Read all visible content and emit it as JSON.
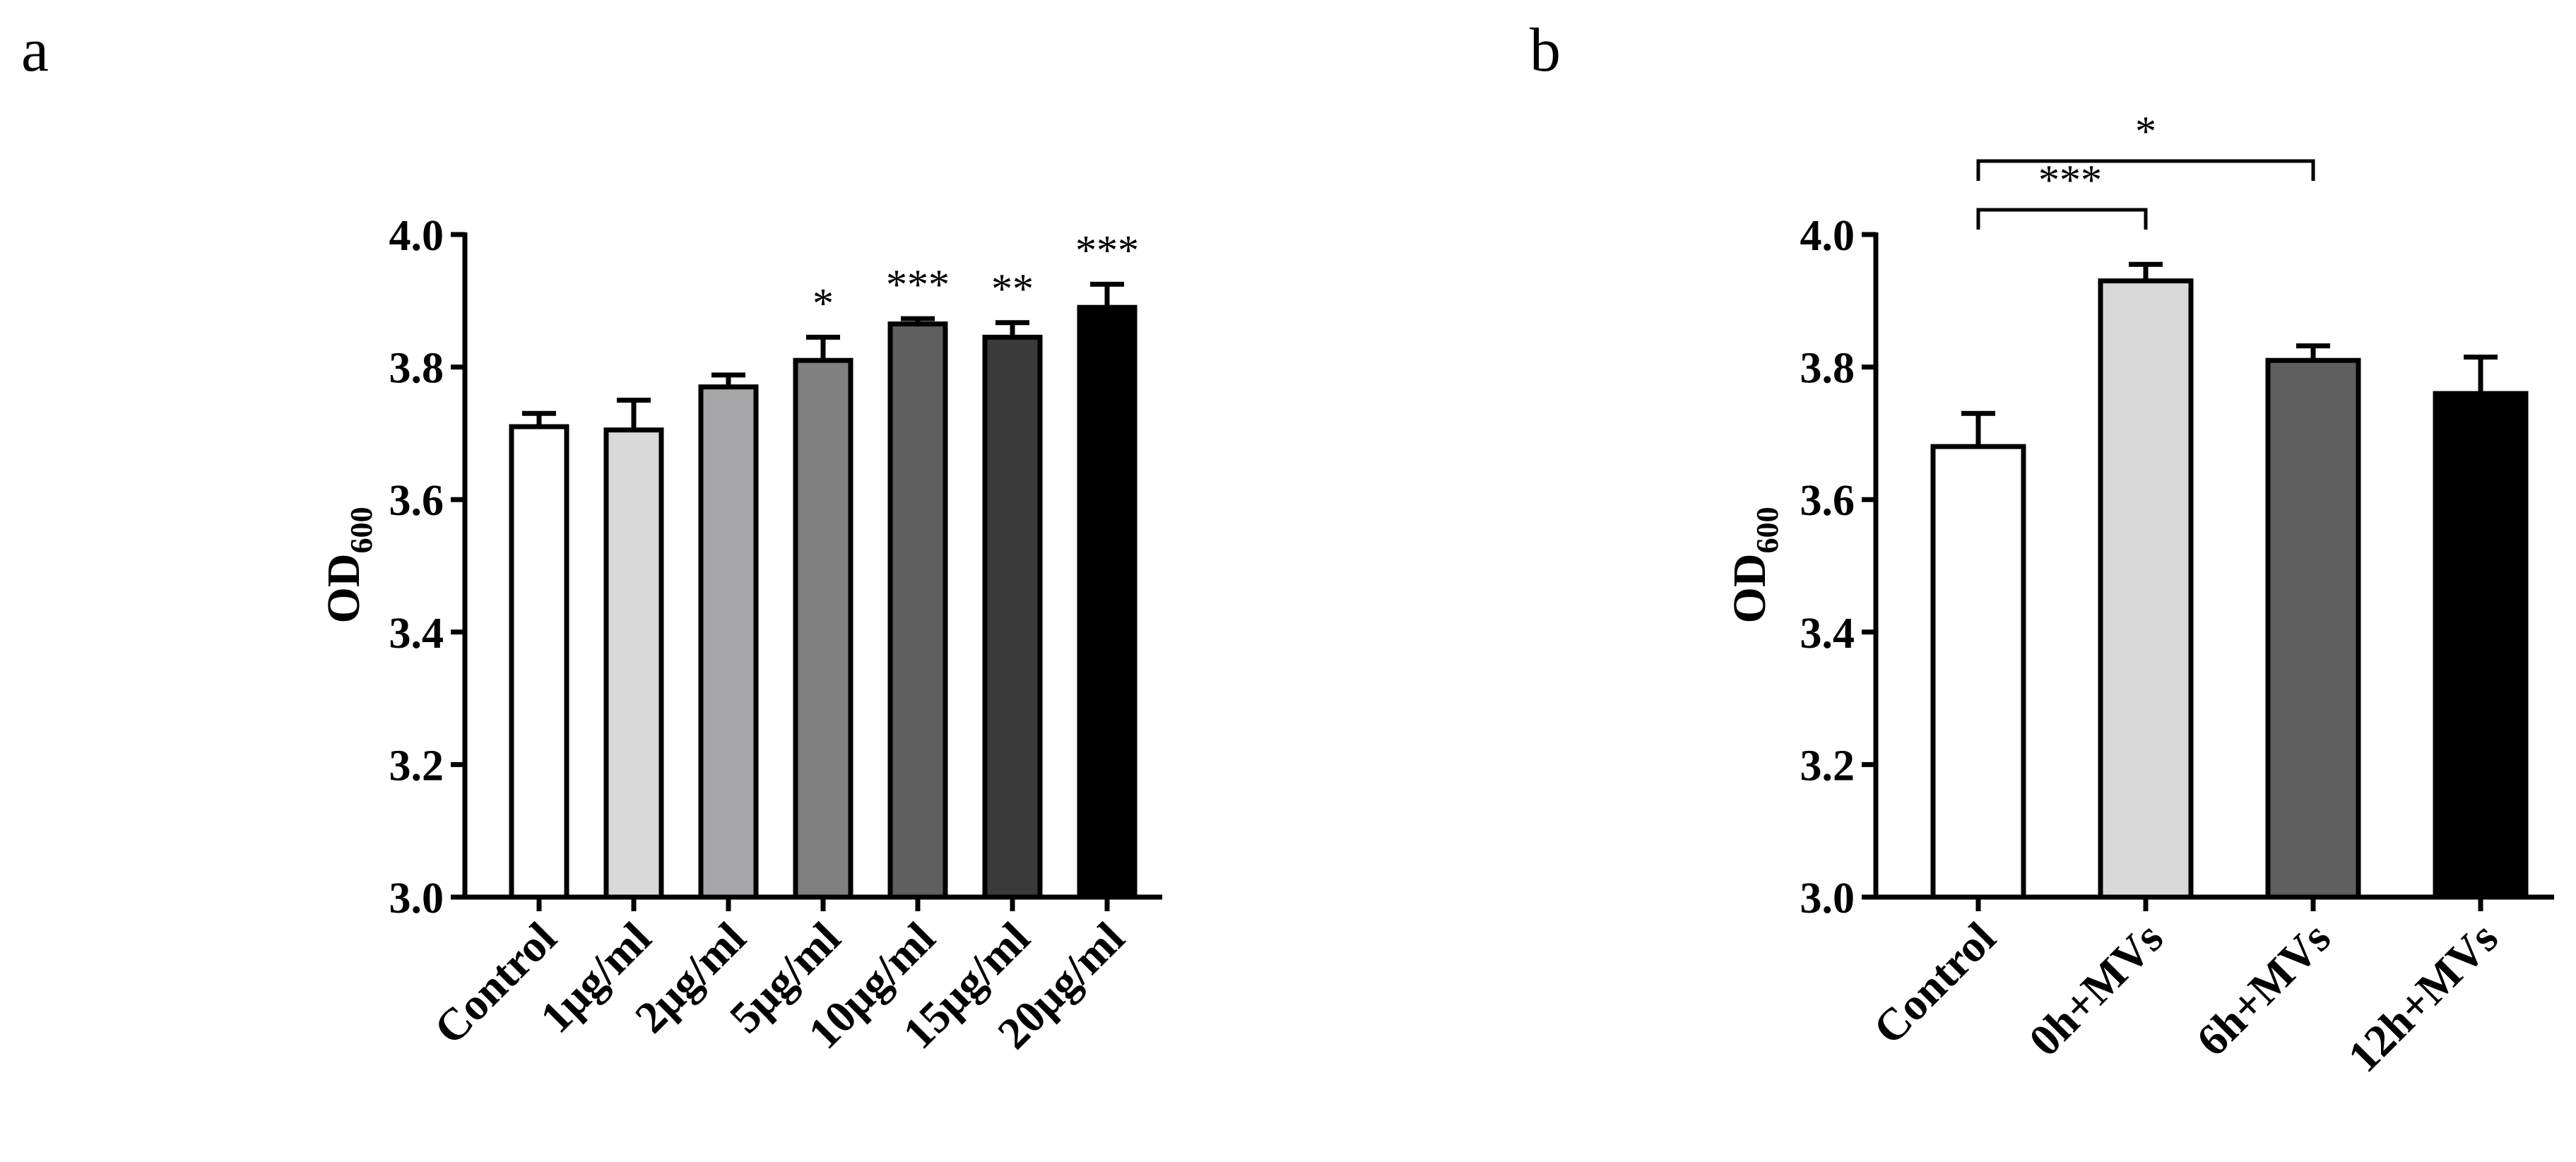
{
  "chart_data": [
    {
      "type": "bar",
      "panel_label": "a",
      "ylabel_main": "OD",
      "ylabel_sub": "600",
      "ylim": [
        3.0,
        4.0
      ],
      "yticks": [
        "3.0",
        "3.2",
        "3.4",
        "3.6",
        "3.8",
        "4.0"
      ],
      "categories": [
        "Control",
        "1μg/ml",
        "2μg/ml",
        "5μg/ml",
        "10μg/ml",
        "15μg/ml",
        "20μg/ml"
      ],
      "values": [
        3.71,
        3.705,
        3.77,
        3.81,
        3.865,
        3.845,
        3.89
      ],
      "error": [
        0.02,
        0.045,
        0.018,
        0.035,
        0.008,
        0.022,
        0.035
      ],
      "colors": [
        "#ffffff",
        "#d9d9d9",
        "#a6a6a8",
        "#808080",
        "#5f5f5f",
        "#3a3a3a",
        "#000000"
      ],
      "significance": [
        "",
        "",
        "",
        "*",
        "***",
        "**",
        "***"
      ],
      "brackets": []
    },
    {
      "type": "bar",
      "panel_label": "b",
      "ylabel_main": "OD",
      "ylabel_sub": "600",
      "ylim": [
        3.0,
        4.0
      ],
      "yticks": [
        "3.0",
        "3.2",
        "3.4",
        "3.6",
        "3.8",
        "4.0"
      ],
      "categories": [
        "Control",
        "0h+MVs",
        "6h+MVs",
        "12h+MVs"
      ],
      "values": [
        3.68,
        3.93,
        3.81,
        3.76
      ],
      "error": [
        0.05,
        0.025,
        0.022,
        0.055
      ],
      "colors": [
        "#ffffff",
        "#d9d9d9",
        "#5f5f5f",
        "#000000"
      ],
      "significance": [
        "",
        "",
        "",
        ""
      ],
      "brackets": [
        {
          "from": 0,
          "to": 1,
          "label": "***"
        },
        {
          "from": 0,
          "to": 2,
          "label": "*"
        }
      ]
    }
  ]
}
